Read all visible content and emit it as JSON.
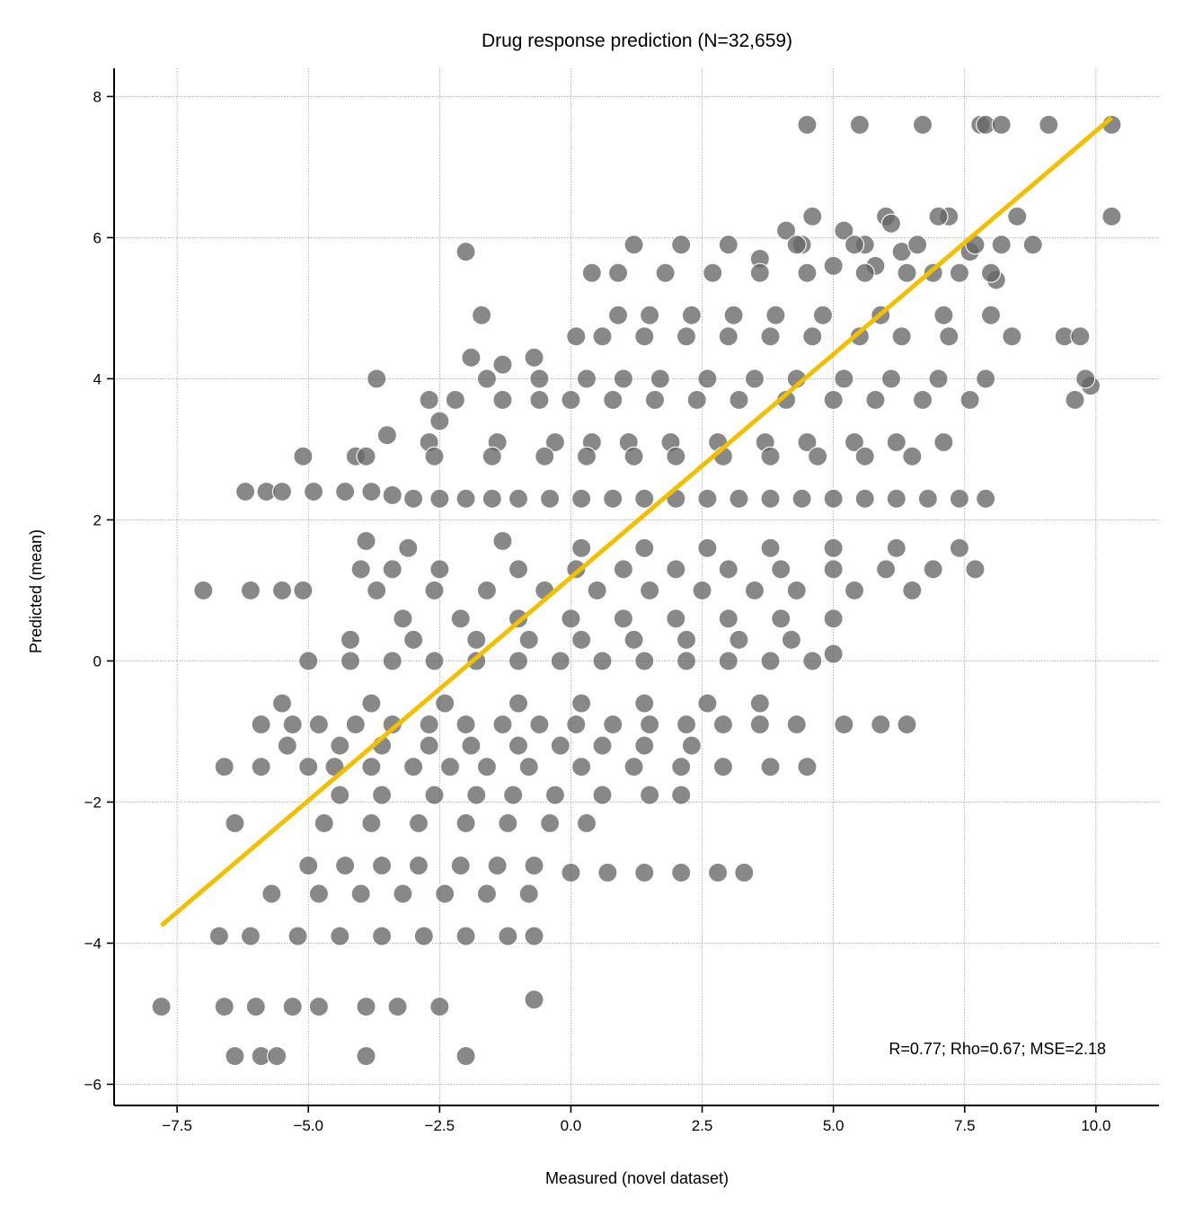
{
  "chart_data": {
    "type": "scatter",
    "title": "Drug response prediction (N=32,659)",
    "xlabel": "Measured (novel dataset)",
    "ylabel": "Predicted (mean)",
    "xlim": [
      -8.7,
      11.2
    ],
    "ylim": [
      -6.3,
      8.4
    ],
    "xticks": [
      -7.5,
      -5.0,
      -2.5,
      0.0,
      2.5,
      5.0,
      7.5,
      10.0
    ],
    "xtick_labels": [
      "−7.5",
      "−5.0",
      "−2.5",
      "0.0",
      "2.5",
      "5.0",
      "7.5",
      "10.0"
    ],
    "yticks": [
      -6,
      -4,
      -2,
      0,
      2,
      4,
      6,
      8
    ],
    "ytick_labels": [
      "−6",
      "−4",
      "−2",
      "0",
      "2",
      "4",
      "6",
      "8"
    ],
    "grid": true,
    "annotation": "R=0.77; Rho=0.67; MSE=2.18",
    "colors": {
      "points": "#666666",
      "fit_line": "#f0c000"
    },
    "fit_line": {
      "x": [
        -7.8,
        10.3
      ],
      "y": [
        -3.75,
        7.7
      ]
    },
    "predicted_levels": [
      7.6,
      6.3,
      5.9,
      5.7,
      5.5,
      5.3,
      4.9,
      4.6,
      4.3,
      4.0,
      3.7,
      3.4,
      3.1,
      2.9,
      2.6,
      2.3,
      2.0,
      1.6,
      1.3,
      1.0,
      0.6,
      0.3,
      0.0,
      -0.3,
      -0.6,
      -0.9,
      -1.2,
      -1.5,
      -1.9,
      -2.3,
      -2.9,
      -3.1,
      -3.4,
      -3.9,
      -4.9,
      -5.6
    ],
    "series": [
      {
        "x": [
          4.5,
          5.5,
          6.7,
          7.8,
          7.9,
          8.2,
          9.1,
          10.3,
          4.6,
          6.0,
          7.2,
          8.5,
          10.3,
          4.1,
          5.2,
          6.1,
          7.0,
          8.8,
          4.4,
          5.6,
          6.3,
          7.6,
          8.2,
          5.8,
          9.4,
          9.7,
          9.9,
          9.6,
          9.8,
          3.6,
          5.0,
          6.9,
          8.1,
          -2.0,
          1.2,
          2.1,
          3.0,
          4.3,
          5.4,
          6.6,
          7.7,
          0.4,
          0.9,
          1.8,
          2.7,
          3.6,
          4.5,
          5.6,
          6.4,
          7.4,
          8.0,
          -1.7,
          0.9,
          1.5,
          2.3,
          3.1,
          3.9,
          4.8,
          5.9,
          7.1,
          8.0,
          -1.9,
          -1.6,
          -0.7,
          0.1,
          0.6,
          1.4,
          2.2,
          3.0,
          3.8,
          4.6,
          5.5,
          6.3,
          7.2,
          8.4,
          -3.7,
          -1.3,
          -0.6,
          0.3,
          1.0,
          1.7,
          2.6,
          3.5,
          4.3,
          5.2,
          6.1,
          7.0,
          7.9,
          -2.7,
          -2.5,
          -2.2,
          -1.3,
          -0.6,
          0.0,
          0.8,
          1.6,
          2.4,
          3.2,
          4.1,
          5.0,
          5.8,
          6.7,
          7.6,
          -3.5,
          -2.7,
          -1.4,
          -0.3,
          0.4,
          1.1,
          1.9,
          2.8,
          3.7,
          4.5,
          5.4,
          6.2,
          7.1,
          -5.1,
          -4.1,
          -3.9,
          -2.6,
          -1.5,
          -0.5,
          0.3,
          1.2,
          2.0,
          2.9,
          3.8,
          4.7,
          5.6,
          6.5,
          -6.2,
          -5.8,
          -5.5,
          -4.9,
          -4.3,
          -3.8,
          -3.4,
          -3.0,
          -2.5,
          -2.0,
          -1.5,
          -1.0,
          -0.4,
          0.2,
          0.8,
          1.4,
          2.0,
          2.6,
          3.2,
          3.8,
          4.4,
          5.0,
          5.6,
          6.2,
          6.8,
          7.4,
          7.9,
          -3.9,
          -3.1,
          -1.3,
          0.2,
          1.4,
          2.6,
          3.8,
          5.0,
          6.2,
          7.4,
          -4.0,
          -3.4,
          -2.5,
          -1.0,
          0.1,
          1.0,
          2.0,
          3.0,
          4.0,
          5.0,
          6.0,
          6.9,
          7.7,
          -7.0,
          -6.1,
          -5.5,
          -5.1,
          -3.7,
          -2.6,
          -1.6,
          -0.5,
          0.5,
          1.5,
          2.5,
          3.5,
          4.3,
          5.4,
          6.5,
          -3.2,
          -2.1,
          -1.0,
          0.0,
          1.0,
          2.0,
          3.0,
          4.0,
          5.0,
          -4.2,
          -3.0,
          -1.8,
          -0.8,
          0.2,
          1.2,
          2.2,
          3.2,
          4.2,
          5.0,
          -5.0,
          -4.2,
          -3.4,
          -2.6,
          -1.8,
          -1.0,
          -0.2,
          0.6,
          1.4,
          2.2,
          3.0,
          3.8,
          4.6,
          -5.5,
          -3.8,
          -2.4,
          -1.0,
          0.2,
          1.4,
          2.6,
          3.6,
          -5.9,
          -5.3,
          -4.8,
          -4.1,
          -3.4,
          -2.7,
          -2.0,
          -1.3,
          -0.6,
          0.1,
          0.8,
          1.5,
          2.2,
          2.9,
          3.6,
          4.3,
          5.2,
          5.9,
          6.4,
          -5.4,
          -4.4,
          -3.6,
          -2.7,
          -1.9,
          -1.0,
          -0.2,
          0.6,
          1.4,
          2.3,
          -6.6,
          -5.9,
          -5.0,
          -4.5,
          -3.8,
          -3.0,
          -2.3,
          -1.6,
          -0.8,
          0.2,
          1.2,
          2.1,
          2.9,
          3.8,
          4.5,
          -4.4,
          -3.6,
          -2.6,
          -1.8,
          -1.1,
          -0.3,
          0.6,
          1.5,
          2.1,
          -6.4,
          -4.7,
          -3.8,
          -2.9,
          -2.0,
          -1.2,
          -0.4,
          0.3,
          -5.0,
          -4.3,
          -3.6,
          -2.9,
          -2.1,
          -1.4,
          -0.7,
          0.0,
          0.7,
          1.4,
          2.1,
          2.8,
          3.3,
          -5.7,
          -4.8,
          -4.0,
          -3.2,
          -2.4,
          -1.6,
          -0.8,
          -6.7,
          -6.1,
          -5.2,
          -4.4,
          -3.6,
          -2.8,
          -2.0,
          -1.2,
          -0.7,
          -7.8,
          -6.6,
          -6.0,
          -5.3,
          -4.8,
          -3.9,
          -3.3,
          -2.5,
          -6.4,
          -5.9,
          -5.6,
          -3.9,
          -2.0,
          -0.7
        ],
        "y": [
          7.6,
          7.6,
          7.6,
          7.6,
          7.6,
          7.6,
          7.6,
          7.6,
          6.3,
          6.3,
          6.3,
          6.3,
          6.3,
          6.1,
          6.1,
          6.2,
          6.3,
          5.9,
          5.9,
          5.9,
          5.8,
          5.8,
          5.9,
          5.6,
          4.6,
          4.6,
          3.9,
          3.7,
          4.0,
          5.7,
          5.6,
          5.5,
          5.4,
          5.8,
          5.9,
          5.9,
          5.9,
          5.9,
          5.9,
          5.9,
          5.9,
          5.5,
          5.5,
          5.5,
          5.5,
          5.5,
          5.5,
          5.5,
          5.5,
          5.5,
          5.5,
          4.9,
          4.9,
          4.9,
          4.9,
          4.9,
          4.9,
          4.9,
          4.9,
          4.9,
          4.9,
          4.3,
          4.0,
          4.3,
          4.6,
          4.6,
          4.6,
          4.6,
          4.6,
          4.6,
          4.6,
          4.6,
          4.6,
          4.6,
          4.6,
          4.0,
          4.2,
          4.0,
          4.0,
          4.0,
          4.0,
          4.0,
          4.0,
          4.0,
          4.0,
          4.0,
          4.0,
          4.0,
          3.7,
          3.4,
          3.7,
          3.7,
          3.7,
          3.7,
          3.7,
          3.7,
          3.7,
          3.7,
          3.7,
          3.7,
          3.7,
          3.7,
          3.7,
          3.2,
          3.1,
          3.1,
          3.1,
          3.1,
          3.1,
          3.1,
          3.1,
          3.1,
          3.1,
          3.1,
          3.1,
          3.1,
          2.9,
          2.9,
          2.9,
          2.9,
          2.9,
          2.9,
          2.9,
          2.9,
          2.9,
          2.9,
          2.9,
          2.9,
          2.9,
          2.9,
          2.4,
          2.4,
          2.4,
          2.4,
          2.4,
          2.4,
          2.35,
          2.3,
          2.3,
          2.3,
          2.3,
          2.3,
          2.3,
          2.3,
          2.3,
          2.3,
          2.3,
          2.3,
          2.3,
          2.3,
          2.3,
          2.3,
          2.3,
          2.3,
          2.3,
          2.3,
          2.3,
          1.7,
          1.6,
          1.7,
          1.6,
          1.6,
          1.6,
          1.6,
          1.6,
          1.6,
          1.6,
          1.3,
          1.3,
          1.3,
          1.3,
          1.3,
          1.3,
          1.3,
          1.3,
          1.3,
          1.3,
          1.3,
          1.3,
          1.3,
          1.0,
          1.0,
          1.0,
          1.0,
          1.0,
          1.0,
          1.0,
          1.0,
          1.0,
          1.0,
          1.0,
          1.0,
          1.0,
          1.0,
          1.0,
          0.6,
          0.6,
          0.6,
          0.6,
          0.6,
          0.6,
          0.6,
          0.6,
          0.6,
          0.3,
          0.3,
          0.3,
          0.3,
          0.3,
          0.3,
          0.3,
          0.3,
          0.3,
          0.1,
          0.0,
          0.0,
          0.0,
          0.0,
          0.0,
          0.0,
          0.0,
          0.0,
          0.0,
          0.0,
          0.0,
          0.0,
          0.0,
          -0.6,
          -0.6,
          -0.6,
          -0.6,
          -0.6,
          -0.6,
          -0.6,
          -0.6,
          -0.9,
          -0.9,
          -0.9,
          -0.9,
          -0.9,
          -0.9,
          -0.9,
          -0.9,
          -0.9,
          -0.9,
          -0.9,
          -0.9,
          -0.9,
          -0.9,
          -0.9,
          -0.9,
          -0.9,
          -0.9,
          -0.9,
          -1.2,
          -1.2,
          -1.2,
          -1.2,
          -1.2,
          -1.2,
          -1.2,
          -1.2,
          -1.2,
          -1.2,
          -1.5,
          -1.5,
          -1.5,
          -1.5,
          -1.5,
          -1.5,
          -1.5,
          -1.5,
          -1.5,
          -1.5,
          -1.5,
          -1.5,
          -1.5,
          -1.5,
          -1.5,
          -1.9,
          -1.9,
          -1.9,
          -1.9,
          -1.9,
          -1.9,
          -1.9,
          -1.9,
          -1.9,
          -2.3,
          -2.3,
          -2.3,
          -2.3,
          -2.3,
          -2.3,
          -2.3,
          -2.3,
          -2.9,
          -2.9,
          -2.9,
          -2.9,
          -2.9,
          -2.9,
          -2.9,
          -3.0,
          -3.0,
          -3.0,
          -3.0,
          -3.0,
          -3.0,
          -3.3,
          -3.3,
          -3.3,
          -3.3,
          -3.3,
          -3.3,
          -3.3,
          -3.9,
          -3.9,
          -3.9,
          -3.9,
          -3.9,
          -3.9,
          -3.9,
          -3.9,
          -3.9,
          -4.9,
          -4.9,
          -4.9,
          -4.9,
          -4.9,
          -4.9,
          -4.9,
          -4.9,
          -5.6,
          -5.6,
          -5.6,
          -5.6,
          -5.6,
          -4.8
        ]
      }
    ]
  }
}
